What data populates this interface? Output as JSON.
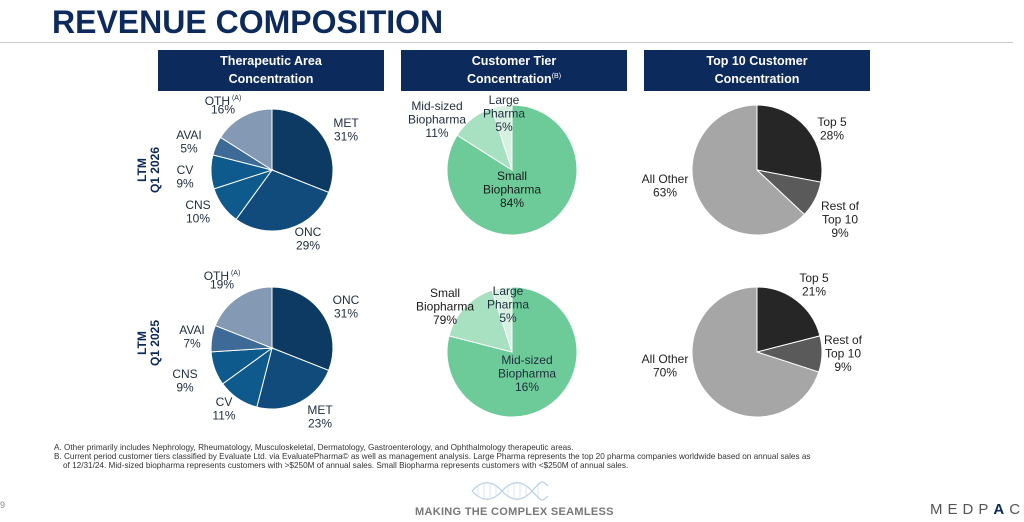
{
  "header": {
    "title": "REVENUE COMPOSITION"
  },
  "column_headers": [
    {
      "line1": "Therapeutic Area",
      "line2": "Concentration",
      "sup": ""
    },
    {
      "line1": "Customer Tier",
      "line2": "Concentration",
      "sup": "(B)"
    },
    {
      "line1": "Top 10 Customer",
      "line2": "Concentration",
      "sup": ""
    }
  ],
  "row_labels": [
    {
      "line1": "LTM",
      "line2": "Q1 2026"
    },
    {
      "line1": "LTM",
      "line2": "Q1 2025"
    }
  ],
  "colors": {
    "navy_dark": "#0d3a63",
    "navy": "#114b7c",
    "navy_mid": "#0f5a8c",
    "slate": "#3e6a98",
    "slate_light": "#8499b3",
    "green": "#6ccb98",
    "green_light": "#a8e0c2",
    "green_pale": "#d7f0e2",
    "black": "#262626",
    "dark_gray": "#5a5a5a",
    "light_gray": "#a6a6a6"
  },
  "chart_data": [
    {
      "type": "pie",
      "title": "Therapeutic Area Concentration",
      "period": "LTM Q1 2026",
      "slices": [
        {
          "label": "MET",
          "value": 31,
          "display": "31%",
          "sup": "",
          "color": "#0d3a63"
        },
        {
          "label": "ONC",
          "value": 29,
          "display": "29%",
          "sup": "",
          "color": "#114b7c"
        },
        {
          "label": "CNS",
          "value": 10,
          "display": "10%",
          "sup": "",
          "color": "#0f5a8c"
        },
        {
          "label": "CV",
          "value": 9,
          "display": "9%",
          "sup": "",
          "color": "#0f5a8c"
        },
        {
          "label": "AVAI",
          "value": 5,
          "display": "5%",
          "sup": "",
          "color": "#3e6a98"
        },
        {
          "label": "OTH",
          "value": 16,
          "display": "16%",
          "sup": "(A)",
          "color": "#8499b3"
        }
      ]
    },
    {
      "type": "pie",
      "title": "Customer Tier Concentration",
      "period": "LTM Q1 2026",
      "slices": [
        {
          "label": "Small Biopharma",
          "value": 84,
          "display": "84%",
          "sup": "",
          "color": "#6ccb98"
        },
        {
          "label": "Mid-sized Biopharma",
          "value": 11,
          "display": "11%",
          "sup": "",
          "color": "#a8e0c2"
        },
        {
          "label": "Large Pharma",
          "value": 5,
          "display": "5%",
          "sup": "",
          "color": "#d7f0e2"
        }
      ]
    },
    {
      "type": "pie",
      "title": "Top 10 Customer Concentration",
      "period": "LTM Q1 2026",
      "slices": [
        {
          "label": "Top 5",
          "value": 28,
          "display": "28%",
          "sup": "",
          "color": "#262626"
        },
        {
          "label": "Rest of Top 10",
          "value": 9,
          "display": "9%",
          "sup": "",
          "color": "#5a5a5a"
        },
        {
          "label": "All Other",
          "value": 63,
          "display": "63%",
          "sup": "",
          "color": "#a6a6a6"
        }
      ]
    },
    {
      "type": "pie",
      "title": "Therapeutic Area Concentration",
      "period": "LTM Q1 2025",
      "slices": [
        {
          "label": "ONC",
          "value": 31,
          "display": "31%",
          "sup": "",
          "color": "#0d3a63"
        },
        {
          "label": "MET",
          "value": 23,
          "display": "23%",
          "sup": "",
          "color": "#114b7c"
        },
        {
          "label": "CV",
          "value": 11,
          "display": "11%",
          "sup": "",
          "color": "#0f5a8c"
        },
        {
          "label": "CNS",
          "value": 9,
          "display": "9%",
          "sup": "",
          "color": "#0f5a8c"
        },
        {
          "label": "AVAI",
          "value": 7,
          "display": "7%",
          "sup": "",
          "color": "#3e6a98"
        },
        {
          "label": "OTH",
          "value": 19,
          "display": "19%",
          "sup": "(A)",
          "color": "#8499b3"
        }
      ]
    },
    {
      "type": "pie",
      "title": "Customer Tier Concentration",
      "period": "LTM Q1 2025",
      "slices": [
        {
          "label": "Small Biopharma",
          "value": 79,
          "display": "79%",
          "sup": "",
          "color": "#6ccb98"
        },
        {
          "label": "Mid-sized Biopharma",
          "value": 16,
          "display": "16%",
          "sup": "",
          "color": "#a8e0c2"
        },
        {
          "label": "Large Pharma",
          "value": 5,
          "display": "5%",
          "sup": "",
          "color": "#d7f0e2"
        }
      ]
    },
    {
      "type": "pie",
      "title": "Top 10 Customer Concentration",
      "period": "LTM Q1 2025",
      "slices": [
        {
          "label": "Top 5",
          "value": 21,
          "display": "21%",
          "sup": "",
          "color": "#262626"
        },
        {
          "label": "Rest of Top 10",
          "value": 9,
          "display": "9%",
          "sup": "",
          "color": "#5a5a5a"
        },
        {
          "label": "All Other",
          "value": 70,
          "display": "70%",
          "sup": "",
          "color": "#a6a6a6"
        }
      ]
    }
  ],
  "footnotes": [
    "A. Other primarily includes Nephrology, Rheumatology, Musculoskeletal, Dermatology, Gastroenterology, and Ophthalmology therapeutic areas.",
    "B. Current period customer tiers classified by Evaluate Ltd. via EvaluatePharma© as well as management analysis. Large Pharma represents the top 20 pharma companies worldwide based on annual sales as",
    "of 12/31/24. Mid-sized biopharma represents customers with >$250M of annual sales. Small Biopharma represents customers with <$250M of annual sales."
  ],
  "footer": {
    "page_number": "9",
    "tagline": "MAKING THE COMPLEX SEAMLESS",
    "logo": "MEDPACE"
  }
}
